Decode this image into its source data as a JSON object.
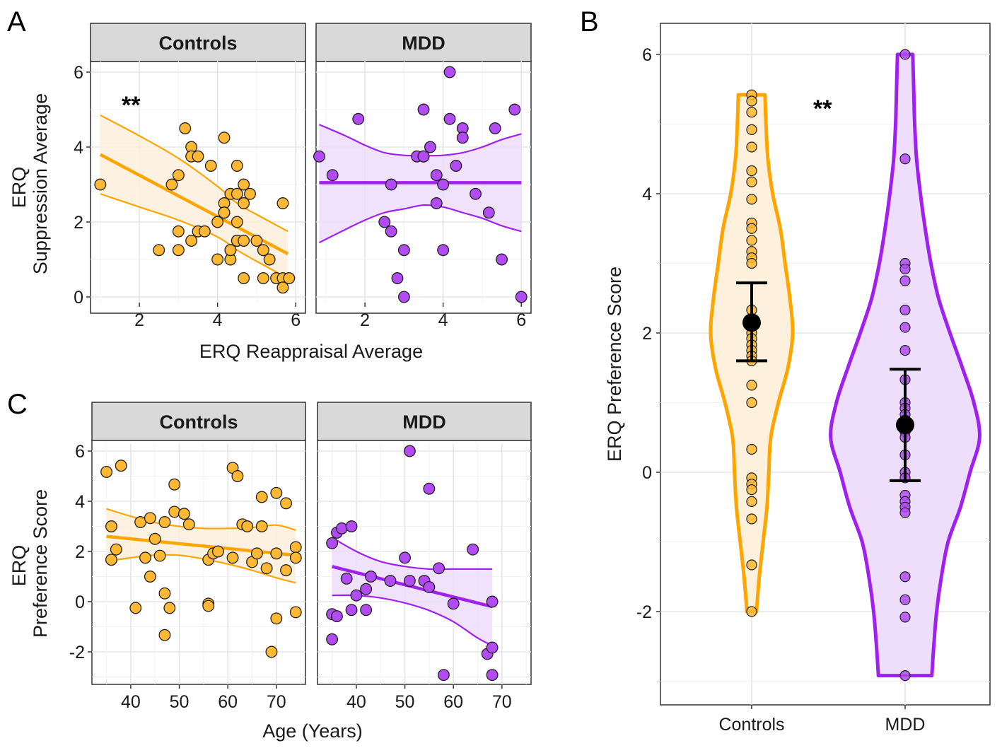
{
  "colors": {
    "controls": "#FFA500",
    "controls_point": "#FFB833",
    "controls_fill": "#FDF0DC",
    "mdd": "#A020F0",
    "mdd_point": "#B24BF3",
    "mdd_fill": "#EEDDFB",
    "point_stroke": "#222222"
  },
  "chart_data": [
    {
      "id": "A",
      "type": "scatter",
      "panel_label": "A",
      "xlabel": "ERQ Reappraisal Average",
      "ylabel_lines": [
        "ERQ",
        "Suppression Average"
      ],
      "ylim": [
        -0.15,
        6.3
      ],
      "yticks": [
        0,
        2,
        4,
        6
      ],
      "xticks": [
        2,
        4,
        6
      ],
      "grid": true,
      "facets": [
        {
          "name": "Controls",
          "xlim": [
            0.75,
            6.25
          ],
          "significance": "**",
          "fit": {
            "x": [
              1.0,
              5.8
            ],
            "y": [
              3.8,
              1.15
            ]
          },
          "ci_upper": {
            "x": [
              1.0,
              2.0,
              3.0,
              4.0,
              4.5,
              5.0,
              5.8
            ],
            "y": [
              4.85,
              4.3,
              3.7,
              2.95,
              2.5,
              2.2,
              1.75
            ]
          },
          "ci_lower": {
            "x": [
              1.0,
              2.0,
              3.0,
              4.0,
              4.5,
              5.0,
              5.8
            ],
            "y": [
              2.75,
              2.4,
              2.05,
              1.6,
              1.25,
              0.95,
              0.5
            ]
          },
          "points": [
            [
              1.0,
              3.0
            ],
            [
              2.5,
              1.25
            ],
            [
              2.83,
              3.0
            ],
            [
              3.0,
              3.25
            ],
            [
              3.0,
              1.75
            ],
            [
              3.0,
              1.25
            ],
            [
              3.17,
              4.5
            ],
            [
              3.33,
              4.0
            ],
            [
              3.33,
              3.75
            ],
            [
              3.5,
              3.75
            ],
            [
              3.33,
              1.5
            ],
            [
              3.5,
              1.75
            ],
            [
              3.67,
              1.75
            ],
            [
              3.83,
              3.5
            ],
            [
              4.0,
              2.0
            ],
            [
              4.0,
              1.0
            ],
            [
              4.17,
              4.25
            ],
            [
              4.17,
              2.5
            ],
            [
              4.17,
              2.25
            ],
            [
              4.17,
              2.25
            ],
            [
              4.33,
              2.75
            ],
            [
              4.33,
              1.25
            ],
            [
              4.33,
              1.0
            ],
            [
              4.33,
              1.25
            ],
            [
              4.5,
              3.5
            ],
            [
              4.5,
              2.75
            ],
            [
              4.5,
              2.0
            ],
            [
              4.5,
              1.5
            ],
            [
              4.5,
              1.5
            ],
            [
              4.67,
              3.0
            ],
            [
              4.67,
              2.5
            ],
            [
              4.67,
              1.5
            ],
            [
              4.67,
              0.5
            ],
            [
              4.83,
              2.75
            ],
            [
              5.0,
              1.5
            ],
            [
              5.17,
              1.25
            ],
            [
              5.17,
              0.5
            ],
            [
              5.33,
              1.0
            ],
            [
              5.5,
              0.5
            ],
            [
              5.67,
              2.5
            ],
            [
              5.67,
              0.5
            ],
            [
              5.67,
              0.25
            ],
            [
              5.83,
              0.5
            ]
          ]
        },
        {
          "name": "MDD",
          "xlim": [
            0.75,
            6.25
          ],
          "significance": "",
          "fit": {
            "x": [
              0.83,
              6.0
            ],
            "y": [
              3.05,
              3.05
            ]
          },
          "ci_upper": {
            "x": [
              0.83,
              1.5,
              2.0,
              2.5,
              3.0,
              3.5,
              4.0,
              4.5,
              5.0,
              5.5,
              6.0
            ],
            "y": [
              4.6,
              4.3,
              4.05,
              3.85,
              3.78,
              3.77,
              3.78,
              3.85,
              4.0,
              4.2,
              4.35
            ]
          },
          "ci_lower": {
            "x": [
              0.83,
              1.5,
              2.0,
              2.5,
              3.0,
              3.5,
              4.0,
              4.5,
              5.0,
              5.5,
              6.0
            ],
            "y": [
              1.45,
              1.8,
              2.05,
              2.25,
              2.35,
              2.45,
              2.4,
              2.25,
              2.1,
              1.9,
              1.75
            ]
          },
          "points": [
            [
              0.83,
              3.75
            ],
            [
              1.17,
              3.25
            ],
            [
              1.83,
              4.75
            ],
            [
              2.5,
              2.0
            ],
            [
              2.67,
              3.0
            ],
            [
              2.67,
              1.75
            ],
            [
              2.83,
              0.5
            ],
            [
              3.0,
              1.25
            ],
            [
              3.0,
              0.0
            ],
            [
              3.33,
              3.75
            ],
            [
              3.5,
              5.0
            ],
            [
              3.5,
              3.75
            ],
            [
              3.5,
              3.75
            ],
            [
              3.67,
              4.0
            ],
            [
              3.83,
              3.25
            ],
            [
              3.83,
              2.5
            ],
            [
              4.0,
              3.0
            ],
            [
              4.0,
              1.25
            ],
            [
              4.17,
              6.0
            ],
            [
              4.17,
              4.75
            ],
            [
              4.33,
              3.5
            ],
            [
              4.5,
              4.5
            ],
            [
              4.5,
              4.25
            ],
            [
              4.83,
              2.75
            ],
            [
              5.17,
              2.25
            ],
            [
              5.33,
              4.5
            ],
            [
              5.5,
              1.0
            ],
            [
              5.83,
              5.0
            ],
            [
              6.0,
              0.0
            ]
          ]
        }
      ]
    },
    {
      "id": "B",
      "type": "violin",
      "panel_label": "B",
      "ylabel": "ERQ Preference Score",
      "xlabel": "",
      "categories": [
        "Controls",
        "MDD"
      ],
      "ylim": [
        -3.3,
        6.45
      ],
      "yticks": [
        -2,
        0,
        2,
        4,
        6
      ],
      "grid": true,
      "significance": "**",
      "series": [
        {
          "name": "Controls",
          "mean": 2.15,
          "error_low": 1.6,
          "error_high": 2.72,
          "range": [
            -2.0,
            5.42
          ],
          "density_halfwidth": [
            [
              -2.0,
              0.05
            ],
            [
              -1.5,
              0.08
            ],
            [
              -1.0,
              0.12
            ],
            [
              -0.5,
              0.16
            ],
            [
              0.0,
              0.18
            ],
            [
              0.5,
              0.2
            ],
            [
              1.0,
              0.28
            ],
            [
              1.5,
              0.38
            ],
            [
              2.0,
              0.43
            ],
            [
              2.5,
              0.4
            ],
            [
              3.0,
              0.35
            ],
            [
              3.5,
              0.3
            ],
            [
              4.0,
              0.22
            ],
            [
              4.5,
              0.17
            ],
            [
              5.0,
              0.15
            ],
            [
              5.42,
              0.14
            ]
          ],
          "points": [
            5.42,
            5.33,
            5.17,
            4.92,
            4.67,
            4.33,
            4.17,
            3.92,
            3.58,
            3.5,
            3.33,
            3.17,
            3.08,
            3.0,
            2.33,
            2.17,
            2.1,
            2.0,
            1.92,
            1.83,
            1.75,
            1.67,
            1.6,
            1.25,
            1.0,
            0.33,
            -0.08,
            -0.17,
            -0.25,
            -0.42,
            -0.67,
            -1.33,
            -2.0
          ]
        },
        {
          "name": "MDD",
          "mean": 0.68,
          "error_low": -0.12,
          "error_high": 1.48,
          "range": [
            -2.92,
            6.0
          ],
          "density_halfwidth": [
            [
              -2.92,
              0.28
            ],
            [
              -2.5,
              0.3
            ],
            [
              -2.0,
              0.33
            ],
            [
              -1.5,
              0.38
            ],
            [
              -1.0,
              0.45
            ],
            [
              -0.5,
              0.58
            ],
            [
              0.0,
              0.68
            ],
            [
              0.5,
              0.78
            ],
            [
              1.0,
              0.72
            ],
            [
              1.5,
              0.6
            ],
            [
              2.0,
              0.47
            ],
            [
              2.5,
              0.35
            ],
            [
              3.0,
              0.27
            ],
            [
              3.5,
              0.21
            ],
            [
              4.0,
              0.16
            ],
            [
              4.5,
              0.12
            ],
            [
              5.0,
              0.1
            ],
            [
              5.5,
              0.09
            ],
            [
              6.0,
              0.08
            ]
          ],
          "points": [
            6.0,
            4.5,
            3.0,
            2.92,
            2.75,
            2.33,
            2.08,
            1.75,
            1.33,
            1.0,
            0.92,
            0.83,
            0.75,
            0.58,
            0.5,
            0.25,
            0.0,
            -0.08,
            -0.33,
            -0.42,
            -0.5,
            -0.58,
            -1.5,
            -1.83,
            -2.08,
            -2.92
          ]
        }
      ]
    },
    {
      "id": "C",
      "type": "scatter",
      "panel_label": "C",
      "xlabel": "Age (Years)",
      "ylabel_lines": [
        "ERQ",
        "Preference Score"
      ],
      "ylim": [
        -3.3,
        6.3
      ],
      "yticks": [
        -2,
        0,
        2,
        4,
        6
      ],
      "xticks": [
        40,
        50,
        60,
        70
      ],
      "grid": true,
      "facets": [
        {
          "name": "Controls",
          "xlim": [
            32,
            76
          ],
          "significance": "",
          "fit": {
            "x": [
              35,
              74
            ],
            "y": [
              2.6,
              1.85
            ]
          },
          "ci_upper": {
            "x": [
              35,
              40,
              45,
              50,
              55,
              60,
              65,
              70,
              74
            ],
            "y": [
              3.7,
              3.4,
              3.15,
              3.0,
              2.92,
              2.92,
              2.95,
              3.05,
              2.85
            ]
          },
          "ci_lower": {
            "x": [
              35,
              40,
              45,
              50,
              55,
              60,
              65,
              70,
              74
            ],
            "y": [
              1.6,
              1.75,
              1.85,
              1.85,
              1.7,
              1.5,
              1.25,
              0.95,
              0.75
            ]
          },
          "points": [
            [
              35,
              5.17
            ],
            [
              36,
              3.0
            ],
            [
              36,
              1.67
            ],
            [
              37,
              2.08
            ],
            [
              38,
              5.42
            ],
            [
              41,
              -0.25
            ],
            [
              42,
              3.17
            ],
            [
              43,
              1.75
            ],
            [
              44,
              3.33
            ],
            [
              44,
              1.0
            ],
            [
              45,
              2.5
            ],
            [
              46,
              1.83
            ],
            [
              47,
              3.17
            ],
            [
              47,
              0.33
            ],
            [
              47,
              -1.33
            ],
            [
              48,
              -0.25
            ],
            [
              49,
              4.67
            ],
            [
              49,
              3.58
            ],
            [
              51,
              3.5
            ],
            [
              52,
              3.08
            ],
            [
              56,
              1.67
            ],
            [
              56,
              -0.08
            ],
            [
              56,
              -0.17
            ],
            [
              57,
              1.92
            ],
            [
              58,
              2.0
            ],
            [
              61,
              1.75
            ],
            [
              61,
              5.33
            ],
            [
              62,
              5.0
            ],
            [
              63,
              3.08
            ],
            [
              64,
              3.0
            ],
            [
              65,
              1.58
            ],
            [
              66,
              1.92
            ],
            [
              67,
              4.17
            ],
            [
              67,
              3.0
            ],
            [
              68,
              1.33
            ],
            [
              69,
              -2.0
            ],
            [
              70,
              4.33
            ],
            [
              70,
              1.92
            ],
            [
              70,
              -0.67
            ],
            [
              72,
              3.92
            ],
            [
              72,
              1.25
            ],
            [
              74,
              2.17
            ],
            [
              74,
              1.75
            ],
            [
              74,
              -0.42
            ]
          ]
        },
        {
          "name": "MDD",
          "xlim": [
            32,
            76
          ],
          "significance": "",
          "fit": {
            "x": [
              35,
              68
            ],
            "y": [
              1.4,
              -0.2
            ]
          },
          "ci_upper": {
            "x": [
              35,
              40,
              45,
              50,
              55,
              60,
              65,
              68
            ],
            "y": [
              2.55,
              2.0,
              1.6,
              1.4,
              1.3,
              1.3,
              1.3,
              1.3
            ]
          },
          "ci_lower": {
            "x": [
              35,
              40,
              45,
              50,
              55,
              60,
              65,
              68
            ],
            "y": [
              0.25,
              0.25,
              0.15,
              -0.05,
              -0.35,
              -0.8,
              -1.45,
              -1.75
            ]
          },
          "points": [
            [
              35,
              2.33
            ],
            [
              35,
              -0.5
            ],
            [
              35,
              -1.5
            ],
            [
              36,
              2.75
            ],
            [
              36,
              -0.58
            ],
            [
              37,
              2.92
            ],
            [
              38,
              0.92
            ],
            [
              39,
              3.0
            ],
            [
              39,
              -0.33
            ],
            [
              40,
              0.25
            ],
            [
              42,
              0.5
            ],
            [
              42,
              -0.33
            ],
            [
              43,
              1.0
            ],
            [
              47,
              0.83
            ],
            [
              50,
              1.75
            ],
            [
              51,
              6.0
            ],
            [
              51,
              0.83
            ],
            [
              54,
              0.83
            ],
            [
              55,
              4.5
            ],
            [
              55,
              0.58
            ],
            [
              57,
              1.33
            ],
            [
              58,
              -2.92
            ],
            [
              60,
              -0.08
            ],
            [
              64,
              2.08
            ],
            [
              67,
              -2.08
            ],
            [
              68,
              0.0
            ],
            [
              68,
              -1.83
            ],
            [
              68,
              -2.92
            ]
          ]
        }
      ]
    }
  ]
}
